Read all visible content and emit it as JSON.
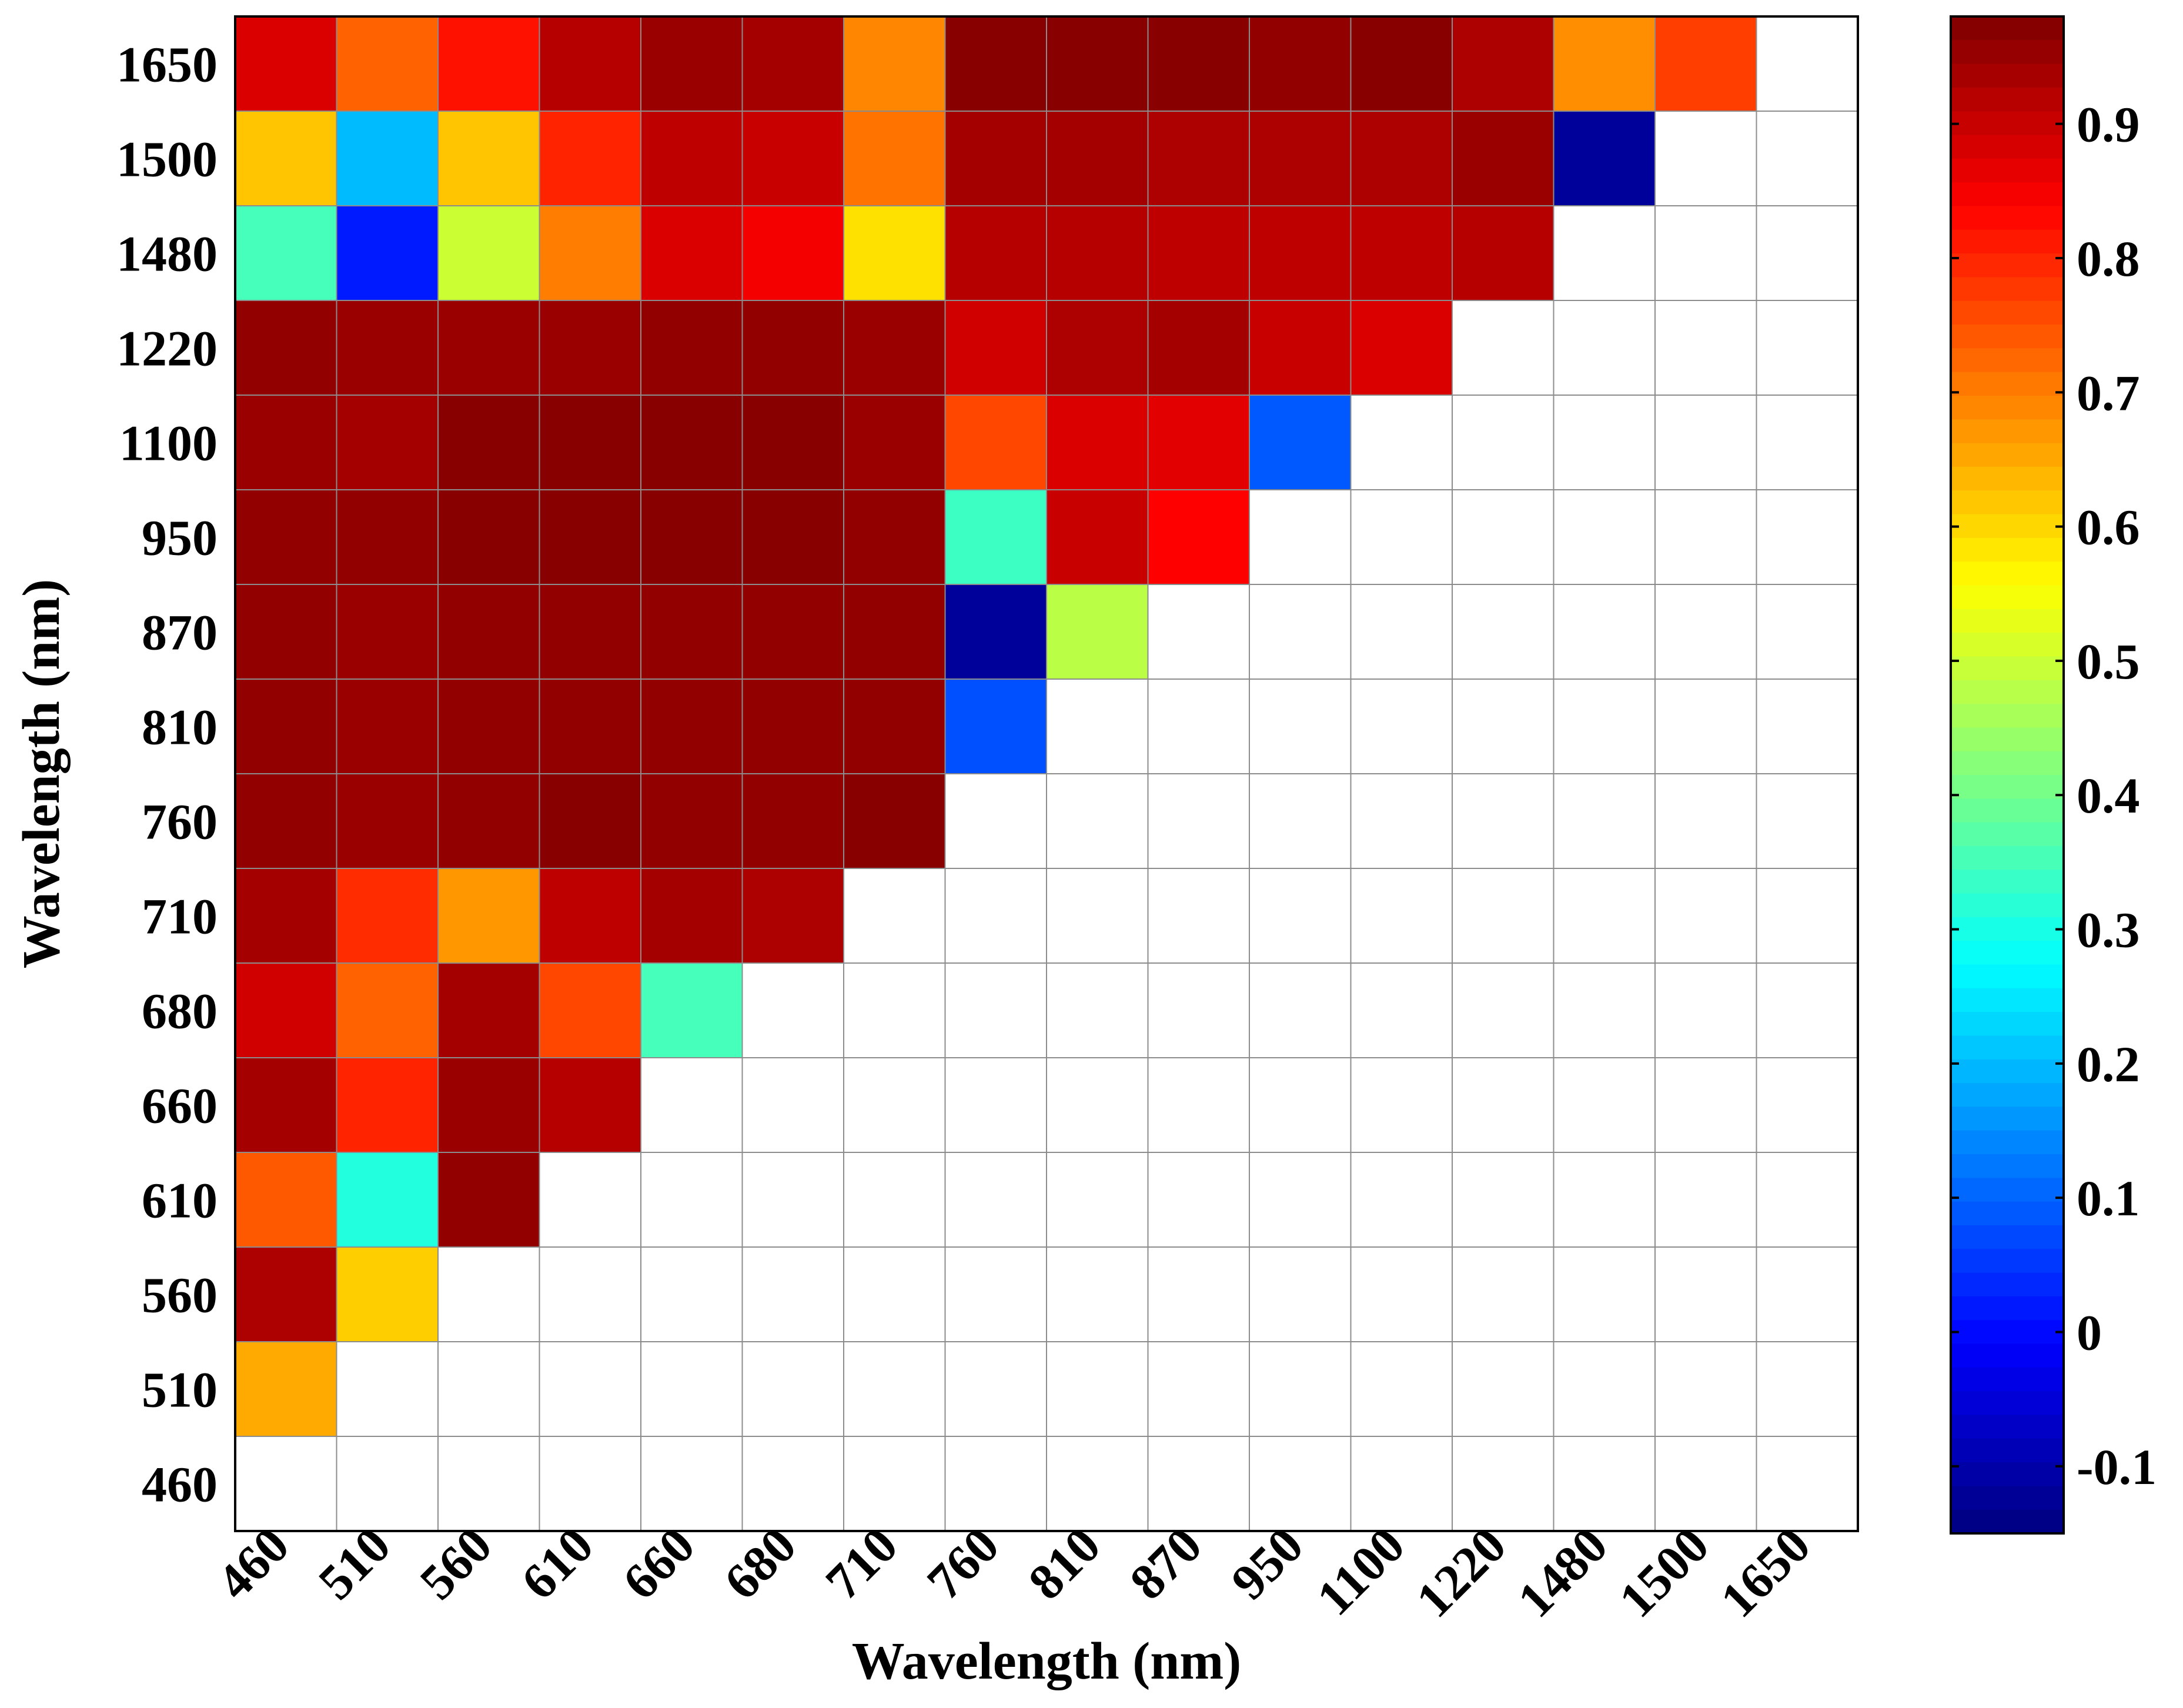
{
  "chart_data": {
    "type": "heatmap",
    "title": "",
    "xlabel": "Wavelength (nm)",
    "ylabel": "Wavelength (nm)",
    "categories": [
      "460",
      "510",
      "560",
      "610",
      "660",
      "680",
      "710",
      "760",
      "810",
      "870",
      "950",
      "1100",
      "1220",
      "1480",
      "1500",
      "1650"
    ],
    "y_categories_top_to_bottom": [
      "1650",
      "1500",
      "1480",
      "1220",
      "1100",
      "950",
      "870",
      "810",
      "760",
      "710",
      "680",
      "660",
      "610",
      "560",
      "510",
      "460"
    ],
    "values_top_to_bottom": [
      [
        0.88,
        0.73,
        0.82,
        0.92,
        0.95,
        0.94,
        0.69,
        0.97,
        0.97,
        0.97,
        0.96,
        0.97,
        0.93,
        0.68,
        0.77,
        null
      ],
      [
        0.62,
        0.2,
        0.62,
        0.8,
        0.91,
        0.9,
        0.71,
        0.94,
        0.94,
        0.93,
        0.93,
        0.93,
        0.95,
        -0.12,
        null,
        null
      ],
      [
        0.35,
        0.02,
        0.5,
        0.7,
        0.88,
        0.85,
        0.59,
        0.92,
        0.92,
        0.91,
        0.91,
        0.91,
        0.92,
        null,
        null,
        null
      ],
      [
        0.96,
        0.95,
        0.95,
        0.95,
        0.96,
        0.96,
        0.95,
        0.89,
        0.93,
        0.94,
        0.9,
        0.88,
        null,
        null,
        null,
        null
      ],
      [
        0.95,
        0.94,
        0.97,
        0.97,
        0.97,
        0.97,
        0.95,
        0.76,
        0.88,
        0.87,
        0.09,
        null,
        null,
        null,
        null,
        null
      ],
      [
        0.96,
        0.96,
        0.97,
        0.97,
        0.97,
        0.97,
        0.96,
        0.34,
        0.9,
        0.84,
        null,
        null,
        null,
        null,
        null,
        null
      ],
      [
        0.96,
        0.95,
        0.96,
        0.96,
        0.96,
        0.96,
        0.96,
        -0.12,
        0.48,
        null,
        null,
        null,
        null,
        null,
        null,
        null
      ],
      [
        0.96,
        0.95,
        0.96,
        0.96,
        0.96,
        0.96,
        0.96,
        0.08,
        null,
        null,
        null,
        null,
        null,
        null,
        null,
        null
      ],
      [
        0.96,
        0.95,
        0.96,
        0.97,
        0.96,
        0.96,
        0.97,
        null,
        null,
        null,
        null,
        null,
        null,
        null,
        null,
        null
      ],
      [
        0.94,
        0.79,
        0.67,
        0.91,
        0.94,
        0.93,
        null,
        null,
        null,
        null,
        null,
        null,
        null,
        null,
        null,
        null
      ],
      [
        0.89,
        0.73,
        0.94,
        0.76,
        0.35,
        null,
        null,
        null,
        null,
        null,
        null,
        null,
        null,
        null,
        null,
        null
      ],
      [
        0.94,
        0.8,
        0.95,
        0.92,
        null,
        null,
        null,
        null,
        null,
        null,
        null,
        null,
        null,
        null,
        null,
        null
      ],
      [
        0.74,
        0.31,
        0.96,
        null,
        null,
        null,
        null,
        null,
        null,
        null,
        null,
        null,
        null,
        null,
        null,
        null
      ],
      [
        0.93,
        0.61,
        null,
        null,
        null,
        null,
        null,
        null,
        null,
        null,
        null,
        null,
        null,
        null,
        null,
        null
      ],
      [
        0.65,
        null,
        null,
        null,
        null,
        null,
        null,
        null,
        null,
        null,
        null,
        null,
        null,
        null,
        null,
        null
      ],
      [
        null,
        null,
        null,
        null,
        null,
        null,
        null,
        null,
        null,
        null,
        null,
        null,
        null,
        null,
        null,
        null
      ]
    ],
    "colorbar": {
      "colormap": "jet",
      "range": [
        -0.15,
        0.98
      ],
      "tick_values": [
        0.9,
        0.8,
        0.7,
        0.6,
        0.5,
        0.4,
        0.3,
        0.2,
        0.1,
        0,
        -0.1
      ],
      "tick_labels": [
        "0.9",
        "0.8",
        "0.7",
        "0.6",
        "0.5",
        "0.4",
        "0.3",
        "0.2",
        "0.1",
        "0",
        "-0.1"
      ]
    },
    "grid": true,
    "legend": "colorbar right"
  }
}
